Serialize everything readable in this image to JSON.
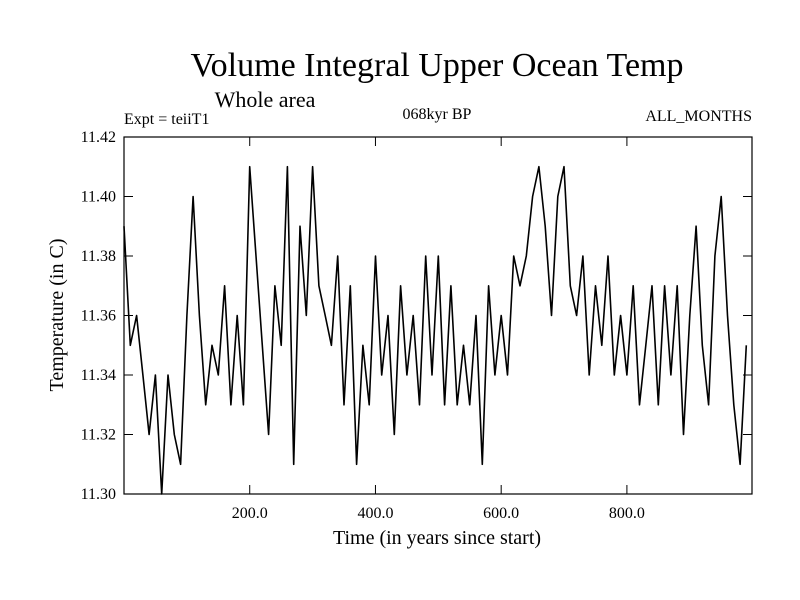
{
  "chart_data": {
    "type": "line",
    "title": "Volume Integral Upper Ocean Temp",
    "subtitle": "Whole area",
    "annotations": {
      "left": "Expt = teiiT1",
      "center": "068kyr BP",
      "right": "ALL_MONTHS"
    },
    "xlabel": "Time (in years since start)",
    "ylabel": "Temperature (in C)",
    "xlim": [
      0,
      999
    ],
    "ylim": [
      11.3,
      11.42
    ],
    "x_ticks": [
      200,
      400,
      600,
      800
    ],
    "x_tick_labels": [
      "200.0",
      "400.0",
      "600.0",
      "800.0"
    ],
    "y_ticks": [
      11.3,
      11.32,
      11.34,
      11.36,
      11.38,
      11.4,
      11.42
    ],
    "y_tick_labels": [
      "11.30",
      "11.32",
      "11.34",
      "11.36",
      "11.38",
      "11.40",
      "11.42"
    ],
    "grid": false,
    "legend": "none",
    "line_color": "#000000",
    "series": [
      {
        "x": [
          0,
          10,
          20,
          30,
          40,
          50,
          60,
          70,
          80,
          90,
          100,
          110,
          120,
          130,
          140,
          150,
          160,
          170,
          180,
          190,
          200,
          210,
          220,
          230,
          240,
          250,
          260,
          270,
          280,
          290,
          300,
          310,
          320,
          330,
          340,
          350,
          360,
          370,
          380,
          390,
          400,
          410,
          420,
          430,
          440,
          450,
          460,
          470,
          480,
          490,
          500,
          510,
          520,
          530,
          540,
          550,
          560,
          570,
          580,
          590,
          600,
          610,
          620,
          630,
          640,
          650,
          660,
          670,
          680,
          690,
          700,
          710,
          720,
          730,
          740,
          750,
          760,
          770,
          780,
          790,
          800,
          810,
          820,
          830,
          840,
          850,
          860,
          870,
          880,
          890,
          900,
          910,
          920,
          930,
          940,
          950,
          960,
          970,
          980,
          990
        ],
        "values": [
          11.39,
          11.35,
          11.36,
          11.34,
          11.32,
          11.34,
          11.3,
          11.34,
          11.32,
          11.31,
          11.36,
          11.4,
          11.36,
          11.33,
          11.35,
          11.34,
          11.37,
          11.33,
          11.36,
          11.33,
          11.41,
          11.38,
          11.35,
          11.32,
          11.37,
          11.35,
          11.41,
          11.31,
          11.39,
          11.36,
          11.41,
          11.37,
          11.36,
          11.35,
          11.38,
          11.33,
          11.37,
          11.31,
          11.35,
          11.33,
          11.38,
          11.34,
          11.36,
          11.32,
          11.37,
          11.34,
          11.36,
          11.33,
          11.38,
          11.34,
          11.38,
          11.33,
          11.37,
          11.33,
          11.35,
          11.33,
          11.36,
          11.31,
          11.37,
          11.34,
          11.36,
          11.34,
          11.38,
          11.37,
          11.38,
          11.4,
          11.41,
          11.39,
          11.36,
          11.4,
          11.41,
          11.37,
          11.36,
          11.38,
          11.34,
          11.37,
          11.35,
          11.38,
          11.34,
          11.36,
          11.34,
          11.37,
          11.33,
          11.35,
          11.37,
          11.33,
          11.37,
          11.34,
          11.37,
          11.32,
          11.36,
          11.39,
          11.35,
          11.33,
          11.38,
          11.4,
          11.36,
          11.33,
          11.31,
          11.35
        ]
      }
    ]
  }
}
